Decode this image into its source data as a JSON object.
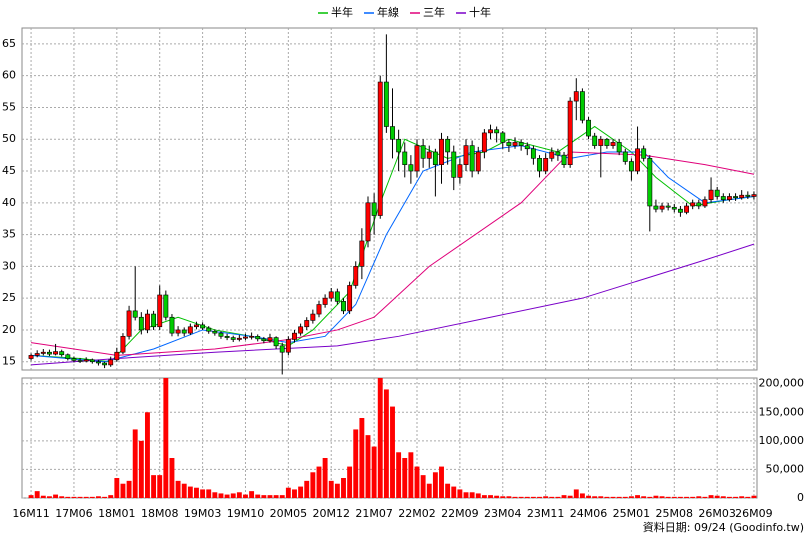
{
  "chart_data": {
    "type": "candlestick",
    "up_color": "#ff0000",
    "down_color": "#00cc00",
    "volume_color": "#ff0000",
    "categories": [
      "16M11",
      null,
      null,
      null,
      null,
      null,
      null,
      "17M06",
      null,
      null,
      null,
      null,
      null,
      null,
      "18M01",
      null,
      null,
      null,
      null,
      null,
      null,
      "18M08",
      null,
      null,
      null,
      null,
      null,
      null,
      "19M03",
      null,
      null,
      null,
      null,
      null,
      null,
      "19M10",
      null,
      null,
      null,
      null,
      null,
      null,
      "20M05",
      null,
      null,
      null,
      null,
      null,
      null,
      "20M12",
      null,
      null,
      null,
      null,
      null,
      null,
      "21M07",
      null,
      null,
      null,
      null,
      null,
      null,
      "22M02",
      null,
      null,
      null,
      null,
      null,
      null,
      "22M09",
      null,
      null,
      null,
      null,
      null,
      null,
      "23M04",
      null,
      null,
      null,
      null,
      null,
      null,
      "23M11",
      null,
      null,
      null,
      null,
      null,
      null,
      "24M06",
      null,
      null,
      null,
      null,
      null,
      null,
      "25M01",
      null,
      null,
      null,
      null,
      null,
      null,
      "25M08",
      null,
      null,
      null,
      null,
      null,
      null,
      "26M03",
      null,
      null,
      null,
      null,
      null,
      "26M09"
    ],
    "ohlc": [
      [
        15.5,
        16.3,
        15.2,
        16.0
      ],
      [
        16.0,
        16.8,
        15.7,
        16.3
      ],
      [
        16.3,
        17.0,
        16.0,
        16.5
      ],
      [
        16.5,
        16.9,
        15.9,
        16.2
      ],
      [
        16.2,
        17.8,
        16.0,
        16.6
      ],
      [
        16.6,
        16.9,
        15.8,
        16.1
      ],
      [
        16.1,
        16.3,
        15.2,
        15.5
      ],
      [
        15.5,
        15.8,
        14.9,
        15.2
      ],
      [
        15.2,
        15.6,
        14.8,
        15.1
      ],
      [
        15.1,
        15.7,
        14.9,
        15.3
      ],
      [
        15.3,
        15.5,
        14.7,
        15.0
      ],
      [
        15.0,
        15.3,
        14.4,
        14.8
      ],
      [
        14.8,
        15.0,
        14.0,
        14.5
      ],
      [
        14.5,
        15.8,
        14.2,
        15.3
      ],
      [
        15.3,
        17.2,
        15.0,
        16.5
      ],
      [
        16.5,
        19.5,
        16.2,
        19.0
      ],
      [
        19.0,
        23.8,
        18.5,
        23.0
      ],
      [
        23.0,
        30.0,
        21.5,
        22.0
      ],
      [
        22.0,
        22.8,
        19.3,
        20.0
      ],
      [
        20.0,
        23.2,
        19.5,
        22.5
      ],
      [
        22.5,
        23.0,
        20.0,
        20.5
      ],
      [
        20.5,
        27.0,
        20.0,
        25.5
      ],
      [
        25.5,
        26.2,
        21.5,
        22.0
      ],
      [
        22.0,
        22.5,
        19.0,
        19.5
      ],
      [
        19.5,
        20.6,
        19.0,
        20.0
      ],
      [
        20.0,
        20.4,
        19.0,
        19.5
      ],
      [
        19.5,
        21.0,
        19.2,
        20.5
      ],
      [
        20.5,
        21.3,
        20.1,
        20.8
      ],
      [
        20.8,
        21.2,
        20.0,
        20.3
      ],
      [
        20.3,
        20.6,
        19.4,
        19.8
      ],
      [
        19.8,
        20.1,
        19.1,
        19.5
      ],
      [
        19.5,
        19.8,
        18.6,
        19.0
      ],
      [
        19.0,
        19.4,
        18.4,
        18.8
      ],
      [
        18.8,
        19.1,
        18.1,
        18.5
      ],
      [
        18.5,
        19.2,
        18.2,
        18.7
      ],
      [
        18.7,
        19.4,
        18.4,
        18.9
      ],
      [
        18.9,
        19.6,
        18.5,
        19.0
      ],
      [
        19.0,
        19.3,
        18.2,
        18.6
      ],
      [
        18.6,
        18.9,
        17.9,
        18.3
      ],
      [
        18.3,
        19.4,
        18.0,
        18.8
      ],
      [
        18.8,
        19.0,
        17.0,
        17.5
      ],
      [
        17.5,
        18.0,
        13.0,
        16.5
      ],
      [
        16.5,
        19.0,
        16.0,
        18.5
      ],
      [
        18.5,
        20.0,
        18.0,
        19.5
      ],
      [
        19.5,
        21.0,
        19.1,
        20.5
      ],
      [
        20.5,
        22.0,
        20.0,
        21.5
      ],
      [
        21.5,
        23.2,
        21.0,
        22.5
      ],
      [
        22.5,
        24.6,
        22.0,
        24.0
      ],
      [
        24.0,
        25.6,
        23.5,
        25.0
      ],
      [
        25.0,
        26.6,
        24.5,
        26.0
      ],
      [
        26.0,
        26.5,
        24.0,
        24.5
      ],
      [
        24.5,
        25.0,
        22.5,
        23.0
      ],
      [
        23.0,
        27.6,
        22.5,
        27.0
      ],
      [
        27.0,
        30.8,
        26.5,
        30.0
      ],
      [
        30.0,
        36.0,
        28.0,
        34.0
      ],
      [
        34.0,
        41.0,
        33.0,
        40.0
      ],
      [
        40.0,
        41.5,
        35.0,
        38.0
      ],
      [
        38.0,
        60.0,
        37.5,
        59.0
      ],
      [
        59.0,
        66.5,
        51.0,
        52.0
      ],
      [
        52.0,
        58.0,
        47.0,
        50.0
      ],
      [
        50.0,
        51.5,
        45.0,
        48.0
      ],
      [
        48.0,
        49.5,
        44.0,
        46.0
      ],
      [
        46.0,
        47.5,
        43.0,
        45.0
      ],
      [
        45.0,
        50.0,
        44.0,
        49.0
      ],
      [
        49.0,
        50.0,
        45.5,
        47.0
      ],
      [
        47.0,
        49.0,
        45.5,
        48.0
      ],
      [
        48.0,
        48.5,
        41.0,
        46.0
      ],
      [
        46.0,
        51.0,
        43.0,
        50.0
      ],
      [
        50.0,
        50.5,
        46.0,
        48.0
      ],
      [
        48.0,
        49.0,
        42.0,
        44.0
      ],
      [
        44.0,
        47.0,
        43.0,
        46.0
      ],
      [
        46.0,
        50.0,
        45.0,
        49.0
      ],
      [
        49.0,
        49.8,
        44.0,
        45.0
      ],
      [
        45.0,
        48.8,
        44.5,
        48.0
      ],
      [
        48.0,
        51.6,
        47.0,
        51.0
      ],
      [
        51.0,
        52.3,
        50.0,
        51.5
      ],
      [
        51.5,
        52.0,
        49.5,
        51.0
      ],
      [
        51.0,
        51.3,
        48.5,
        49.5
      ],
      [
        49.5,
        50.0,
        48.0,
        49.0
      ],
      [
        49.0,
        50.3,
        48.5,
        49.5
      ],
      [
        49.5,
        50.0,
        48.2,
        49.0
      ],
      [
        49.0,
        49.5,
        47.5,
        48.5
      ],
      [
        48.5,
        49.0,
        46.0,
        47.0
      ],
      [
        47.0,
        47.5,
        44.0,
        45.0
      ],
      [
        45.0,
        47.8,
        44.5,
        47.0
      ],
      [
        47.0,
        48.7,
        46.5,
        48.0
      ],
      [
        48.0,
        48.5,
        46.6,
        47.5
      ],
      [
        47.5,
        48.0,
        45.5,
        46.0
      ],
      [
        46.0,
        56.6,
        45.5,
        56.0
      ],
      [
        56.0,
        59.6,
        53.0,
        57.5
      ],
      [
        57.5,
        58.0,
        52.5,
        53.0
      ],
      [
        53.0,
        53.5,
        50.0,
        50.5
      ],
      [
        50.5,
        51.0,
        48.5,
        49.0
      ],
      [
        49.0,
        50.5,
        44.0,
        50.0
      ],
      [
        50.0,
        50.2,
        48.5,
        49.0
      ],
      [
        49.0,
        50.0,
        48.5,
        49.5
      ],
      [
        49.5,
        50.0,
        47.5,
        48.0
      ],
      [
        48.0,
        48.5,
        46.0,
        46.5
      ],
      [
        46.5,
        47.0,
        43.5,
        45.0
      ],
      [
        45.0,
        52.0,
        44.5,
        48.5
      ],
      [
        48.5,
        49.0,
        46.5,
        47.0
      ],
      [
        47.0,
        47.5,
        35.5,
        39.5
      ],
      [
        39.5,
        40.5,
        38.5,
        39.0
      ],
      [
        39.0,
        40.0,
        38.5,
        39.5
      ],
      [
        39.5,
        40.0,
        38.8,
        39.3
      ],
      [
        39.3,
        39.8,
        38.5,
        39.0
      ],
      [
        39.0,
        39.5,
        37.8,
        38.5
      ],
      [
        38.5,
        40.0,
        38.2,
        39.5
      ],
      [
        39.5,
        40.5,
        39.0,
        40.0
      ],
      [
        40.0,
        40.5,
        39.0,
        39.5
      ],
      [
        39.5,
        41.0,
        39.2,
        40.5
      ],
      [
        40.5,
        44.0,
        40.0,
        42.0
      ],
      [
        42.0,
        42.5,
        40.5,
        41.0
      ],
      [
        41.0,
        41.5,
        40.0,
        40.5
      ],
      [
        40.5,
        41.5,
        40.2,
        41.0
      ],
      [
        41.0,
        41.5,
        40.3,
        40.8
      ],
      [
        40.8,
        42.0,
        40.5,
        41.2
      ],
      [
        41.2,
        41.8,
        40.6,
        41.0
      ],
      [
        41.0,
        41.8,
        40.5,
        41.3
      ]
    ],
    "volume": [
      5000,
      12000,
      4000,
      3000,
      6000,
      3000,
      2000,
      2000,
      2000,
      2000,
      2000,
      3000,
      2000,
      5000,
      35000,
      25000,
      30000,
      120000,
      100000,
      150000,
      40000,
      40000,
      210000,
      70000,
      30000,
      25000,
      20000,
      18000,
      15000,
      15000,
      10000,
      8000,
      6000,
      8000,
      10000,
      6000,
      12000,
      6000,
      5000,
      5000,
      5000,
      5000,
      18000,
      15000,
      20000,
      30000,
      45000,
      55000,
      70000,
      30000,
      25000,
      35000,
      55000,
      120000,
      140000,
      110000,
      90000,
      210000,
      190000,
      160000,
      80000,
      70000,
      80000,
      55000,
      40000,
      25000,
      45000,
      55000,
      25000,
      20000,
      15000,
      10000,
      10000,
      8000,
      5000,
      5000,
      4000,
      3000,
      3000,
      2000,
      2000,
      2000,
      2000,
      2000,
      3000,
      2000,
      2000,
      5000,
      4000,
      15000,
      8000,
      4000,
      3000,
      3000,
      2000,
      2000,
      2000,
      2000,
      3000,
      5000,
      3000,
      2000,
      4000,
      3000,
      2000,
      2000,
      2000,
      2000,
      2000,
      3000,
      2000,
      5000,
      4000,
      3000,
      2000,
      2000,
      3000,
      2000,
      4000
    ],
    "series": [
      {
        "name": "半年",
        "color": "#00c000",
        "x": [
          0,
          8,
          13,
          18,
          24,
          30,
          36,
          42,
          46,
          52,
          57,
          61,
          68,
          74,
          78,
          86,
          92,
          98,
          102,
          108,
          114,
          118
        ],
        "values": [
          16,
          15.5,
          15,
          20,
          22,
          20,
          19,
          17.5,
          20,
          26,
          40,
          50,
          47,
          48,
          50,
          48,
          52,
          48,
          44,
          39.5,
          40.5,
          41
        ]
      },
      {
        "name": "年線",
        "color": "#0066ff",
        "x": [
          0,
          12,
          20,
          28,
          36,
          42,
          48,
          53,
          58,
          64,
          72,
          80,
          88,
          94,
          100,
          104,
          110,
          118
        ],
        "values": [
          16,
          15,
          17,
          20,
          19,
          18,
          19,
          24,
          35,
          45,
          48,
          49,
          47,
          48,
          48,
          44,
          40,
          41
        ]
      },
      {
        "name": "三年",
        "color": "#e0007a",
        "x": [
          0,
          14,
          30,
          42,
          50,
          56,
          65,
          80,
          88,
          100,
          110,
          118
        ],
        "values": [
          18,
          16,
          17,
          18.5,
          20,
          22,
          30,
          40,
          48,
          47.5,
          46,
          44.5
        ]
      },
      {
        "name": "十年",
        "color": "#7a00c8",
        "x": [
          0,
          14,
          30,
          50,
          60,
          75,
          90,
          100,
          110,
          118
        ],
        "values": [
          14.5,
          15.5,
          16.5,
          17.5,
          19,
          22,
          25,
          28,
          31,
          33.5
        ]
      }
    ],
    "ylim": [
      13.7,
      67.5
    ],
    "yticks": [
      15,
      20,
      25,
      30,
      35,
      40,
      45,
      50,
      55,
      60,
      65
    ],
    "volume_ylim": [
      0,
      210000
    ],
    "volume_yticks": [
      0,
      {
        "value": 50000,
        "label": "50,000"
      },
      {
        "value": 100000,
        "label": "100,000"
      },
      {
        "value": 150000,
        "label": "150,000"
      },
      {
        "value": 200000,
        "label": "200,000"
      }
    ],
    "grid": true,
    "footer": "資料日期: 09/24 (Goodinfo.tw)"
  }
}
